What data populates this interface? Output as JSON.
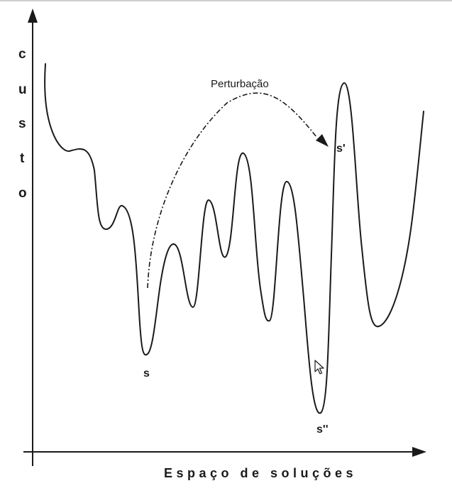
{
  "y_axis": {
    "letters": [
      "c",
      "u",
      "s",
      "t",
      "o"
    ]
  },
  "x_axis": {
    "label": "Espaço de soluções"
  },
  "arrow": {
    "label": "Perturbação"
  },
  "points": {
    "s": "s",
    "s_prime": "s'",
    "s_double_prime": "s''"
  },
  "colors": {
    "ink": "#1a1a1a",
    "background": "#ffffff"
  },
  "icons": {
    "cursor": "mouse-pointer-icon"
  }
}
